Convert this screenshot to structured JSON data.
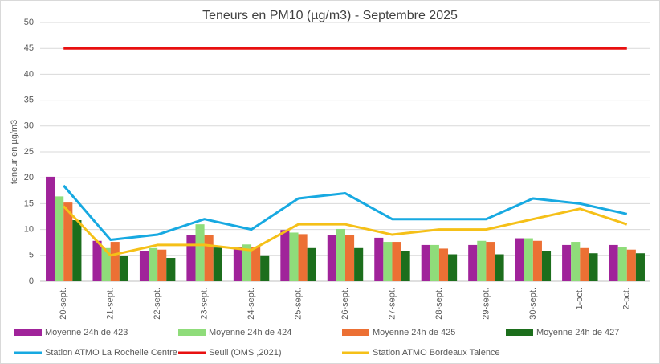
{
  "chart_data": {
    "type": "bar-line",
    "title": "Teneurs en PM10 (µg/m3) - Septembre 2025",
    "y_label": "teneur en µg/m3",
    "categories": [
      "20-sept.",
      "21-sept.",
      "22-sept.",
      "23-sept.",
      "24-sept.",
      "25-sept.",
      "26-sept.",
      "27-sept.",
      "28-sept.",
      "29-sept.",
      "30-sept.",
      "1-oct.",
      "2-oct."
    ],
    "ylim": [
      0,
      50
    ],
    "yticks": [
      0,
      5,
      10,
      15,
      20,
      25,
      30,
      35,
      40,
      45,
      50
    ],
    "grid": true,
    "series": [
      {
        "name": "Moyenne 24h de 423",
        "kind": "bar",
        "color": "#a0239a",
        "values": [
          20.2,
          7.8,
          5.9,
          9.0,
          6.6,
          9.9,
          9.0,
          8.4,
          7.0,
          7.0,
          8.3,
          7.0,
          7.0
        ]
      },
      {
        "name": "Moyenne 24h de 424",
        "kind": "bar",
        "color": "#8fdc7a",
        "values": [
          16.4,
          6.4,
          6.4,
          11.0,
          7.1,
          9.4,
          10.1,
          7.6,
          7.0,
          7.8,
          8.3,
          7.6,
          6.6
        ]
      },
      {
        "name": "Moyenne 24h de 425",
        "kind": "bar",
        "color": "#ec7034",
        "values": [
          15.2,
          7.6,
          6.1,
          9.0,
          6.6,
          9.1,
          9.0,
          7.6,
          6.3,
          7.6,
          7.8,
          6.4,
          6.1
        ]
      },
      {
        "name": "Moyenne 24h de 427",
        "kind": "bar",
        "color": "#1c6e1c",
        "values": [
          11.8,
          4.9,
          4.5,
          6.5,
          5.0,
          6.4,
          6.4,
          5.9,
          5.2,
          5.2,
          5.9,
          5.4,
          5.4
        ]
      },
      {
        "name": "Station ATMO La Rochelle Centre",
        "kind": "line",
        "color": "#17a9e1",
        "values": [
          18.5,
          8,
          9,
          12,
          10,
          16,
          17,
          12,
          12,
          12,
          16,
          15,
          13
        ]
      },
      {
        "name": "Seuil (OMS ,2021)",
        "kind": "line",
        "color": "#e81010",
        "values": [
          45,
          45,
          45,
          45,
          45,
          45,
          45,
          45,
          45,
          45,
          45,
          45,
          45
        ]
      },
      {
        "name": "Station ATMO Bordeaux Talence",
        "kind": "line",
        "color": "#f5c018",
        "values": [
          14.5,
          5,
          7,
          7,
          6,
          11,
          11,
          9,
          10,
          10,
          12,
          14,
          11
        ]
      }
    ]
  }
}
